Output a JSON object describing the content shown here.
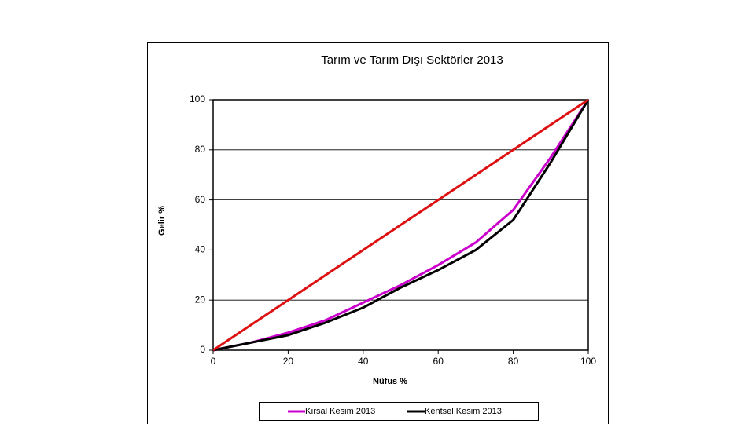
{
  "chart_data": {
    "type": "line",
    "title": "Tarım ve Tarım Dışı Sektörler 2013",
    "x_label": "Nüfus %",
    "y_label": "Gelir %",
    "x": [
      0,
      10,
      20,
      30,
      40,
      50,
      60,
      70,
      80,
      90,
      100
    ],
    "series": [
      {
        "name": "Kırsal Kesim 2013",
        "color": "#cc00cc",
        "values": [
          0,
          3,
          7,
          12,
          19,
          26,
          34,
          43,
          56,
          77,
          100
        ]
      },
      {
        "name": "Kentsel Kesim 2013",
        "color": "#000000",
        "values": [
          0,
          3,
          6,
          11,
          17,
          25,
          32,
          40,
          52,
          75,
          100
        ]
      },
      {
        "color": "#dd1111",
        "values": [
          0,
          10,
          20,
          30,
          40,
          50,
          60,
          70,
          80,
          90,
          100
        ]
      }
    ],
    "xlim": [
      0,
      100
    ],
    "xticks": [
      0,
      20,
      40,
      60,
      80,
      100
    ],
    "ylim": [
      0,
      100
    ],
    "yticks": [
      0,
      20,
      40,
      60,
      80,
      100
    ],
    "grid": true
  }
}
